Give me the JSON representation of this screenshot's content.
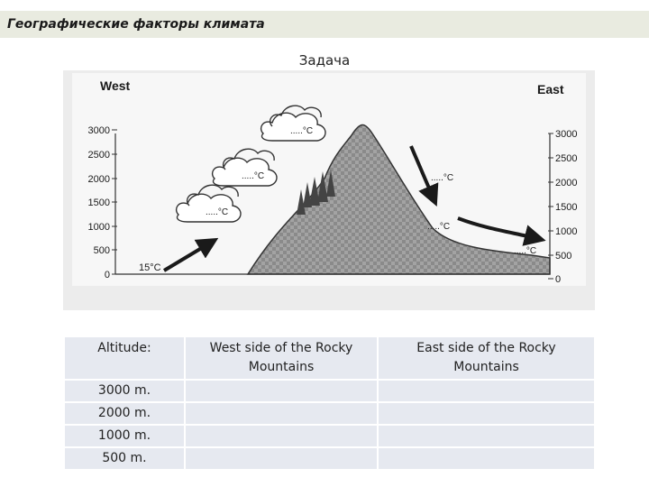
{
  "header": {
    "title": "Географические факторы климата"
  },
  "subtitle": "Задача",
  "figure": {
    "west_label": "West",
    "east_label": "East",
    "left_axis": [
      "3000",
      "2500",
      "2000",
      "1500",
      "1000",
      "500",
      "0"
    ],
    "right_axis": [
      "3000",
      "2500",
      "2000",
      "1500",
      "1000",
      "500",
      "0"
    ],
    "start_temp": "15°C",
    "cloud_labels": [
      ".....°C",
      ".....°C",
      ".....°C"
    ],
    "east_labels": [
      ".....°C",
      ".....°C",
      ".....°C"
    ]
  },
  "table": {
    "headers": [
      "Altitude:",
      "West side of the Rocky Mountains",
      "East side of the Rocky Mountains"
    ],
    "rows": [
      [
        "3000 m.",
        "",
        ""
      ],
      [
        "2000 m.",
        "",
        ""
      ],
      [
        "1000 m.",
        "",
        ""
      ],
      [
        "500 m.",
        "",
        ""
      ]
    ]
  }
}
